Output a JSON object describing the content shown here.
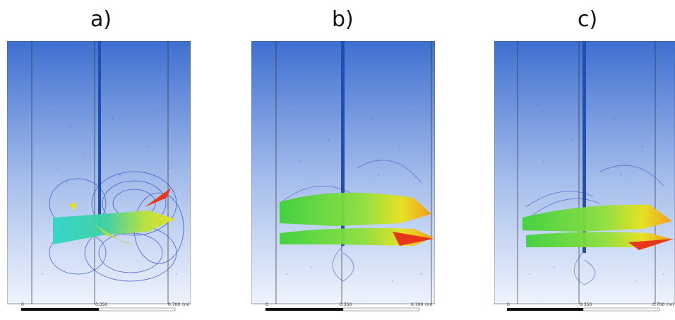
{
  "panels": [
    {
      "id": "a",
      "label": "a)",
      "scale": {
        "start": "0",
        "mid": "0.350",
        "end": "0.700",
        "unit": "(m)"
      },
      "hot_region": "center-low"
    },
    {
      "id": "b",
      "label": "b)",
      "scale": {
        "start": "0",
        "mid": "0.350",
        "end": "0.700",
        "unit": "(m)"
      },
      "hot_region": "right"
    },
    {
      "id": "c",
      "label": "c)",
      "scale": {
        "start": "0",
        "mid": "0.350",
        "end": "0.700",
        "unit": "(m)"
      },
      "hot_region": "right"
    }
  ],
  "colors": {
    "background_top": "#3f6fd0",
    "background_bottom": "#eaf0fb",
    "vector_blue": "#1f3fbf",
    "vector_cyan": "#2ed6c8",
    "vector_green": "#3fd13a",
    "vector_yellow": "#e8e21a",
    "vector_orange": "#f59a10",
    "vector_red": "#e8361a"
  }
}
